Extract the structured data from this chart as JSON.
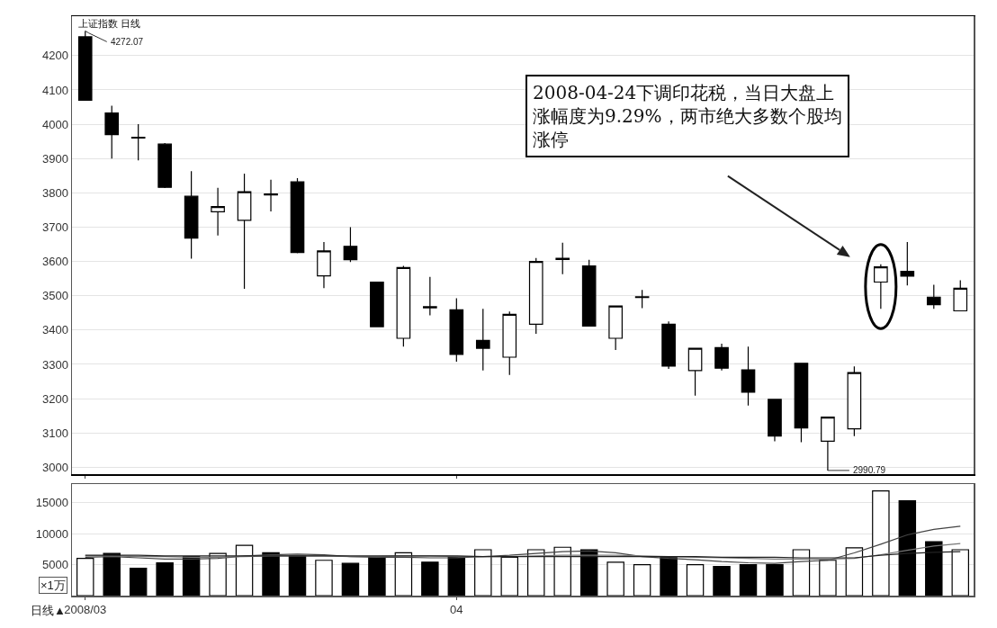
{
  "chart_data": [
    {
      "type": "candlestick",
      "categories": [
        "2008/03",
        null,
        null,
        null,
        null,
        null,
        null,
        null,
        null,
        null,
        null,
        null,
        null,
        null,
        "04",
        null,
        null,
        null,
        null,
        null,
        null,
        null,
        null,
        null,
        null,
        null,
        null,
        null,
        null,
        null,
        null,
        null,
        null,
        null
      ],
      "ohlc": [
        [
          4255,
          4272,
          4070,
          4070
        ],
        [
          4033,
          4054,
          3900,
          3970
        ],
        [
          3960,
          4000,
          3895,
          3962
        ],
        [
          3942,
          3945,
          3814,
          3816
        ],
        [
          3790,
          3863,
          3608,
          3668
        ],
        [
          3745,
          3815,
          3676,
          3760
        ],
        [
          3720,
          3856,
          3520,
          3803
        ],
        [
          3794,
          3838,
          3746,
          3797
        ],
        [
          3832,
          3843,
          3624,
          3626
        ],
        [
          3558,
          3657,
          3522,
          3631
        ],
        [
          3644,
          3700,
          3598,
          3605
        ],
        [
          3540,
          3540,
          3410,
          3410
        ],
        [
          3376,
          3587,
          3352,
          3582
        ],
        [
          3465,
          3555,
          3443,
          3468
        ],
        [
          3459,
          3493,
          3308,
          3329
        ],
        [
          3370,
          3462,
          3282,
          3347
        ],
        [
          3321,
          3454,
          3269,
          3446
        ],
        [
          3417,
          3610,
          3389,
          3600
        ],
        [
          3606,
          3655,
          3563,
          3609
        ],
        [
          3587,
          3605,
          3412,
          3412
        ],
        [
          3376,
          3472,
          3342,
          3470
        ],
        [
          3495,
          3517,
          3464,
          3497
        ],
        [
          3417,
          3425,
          3287,
          3295
        ],
        [
          3282,
          3347,
          3209,
          3347
        ],
        [
          3349,
          3360,
          3282,
          3289
        ],
        [
          3284,
          3352,
          3180,
          3219
        ],
        [
          3198,
          3198,
          3076,
          3091
        ],
        [
          3303,
          3303,
          3073,
          3115
        ],
        [
          3076,
          3146,
          2990.79,
          3146
        ],
        [
          3112,
          3294,
          3091,
          3276
        ],
        [
          3540,
          3592,
          3462,
          3584
        ],
        [
          3571,
          3657,
          3530,
          3557
        ],
        [
          3496,
          3532,
          3462,
          3474
        ],
        [
          3456,
          3545,
          3456,
          3522
        ]
      ],
      "colors": [
        "#000000",
        "#000000",
        "#000000",
        "#000000",
        "#000000",
        "#ffffff",
        "#ffffff",
        "#000000",
        "#000000",
        "#ffffff",
        "#000000",
        "#000000",
        "#ffffff",
        "#000000",
        "#000000",
        "#000000",
        "#ffffff",
        "#ffffff",
        "#000000",
        "#000000",
        "#ffffff",
        "#000000",
        "#000000",
        "#ffffff",
        "#000000",
        "#000000",
        "#000000",
        "#000000",
        "#ffffff",
        "#ffffff",
        "#ffffff",
        "#000000",
        "#000000",
        "#ffffff"
      ],
      "ylim": [
        2980,
        4315
      ],
      "yticks": [
        3000,
        3100,
        3200,
        3300,
        3400,
        3500,
        3600,
        3700,
        3800,
        3900,
        4000,
        4100,
        4200
      ],
      "grid": "y",
      "tick_labels": "y",
      "annotations": [
        "上证指数 日线",
        "4272.07",
        "2990.79",
        "2008-04-24下调印花税，当日大盘上涨幅度为9.29%，两市绝大多数个股均涨停"
      ]
    },
    {
      "type": "bar",
      "categories": [
        "2008/03",
        null,
        null,
        null,
        null,
        null,
        null,
        null,
        null,
        null,
        null,
        null,
        null,
        null,
        "04",
        null,
        null,
        null,
        null,
        null,
        null,
        null,
        null,
        null,
        null,
        null,
        null,
        null,
        null,
        null,
        null,
        null,
        null,
        null
      ],
      "series": [
        {
          "values": [
            6000,
            6800,
            4400,
            5300,
            6300,
            6800,
            8100,
            6900,
            6400,
            5700,
            5200,
            6200,
            6900,
            5400,
            6200,
            7400,
            6200,
            7400,
            7800,
            7400,
            5400,
            5000,
            6200,
            5000,
            4700,
            5000,
            5000,
            7400,
            5700,
            7700,
            16900,
            15300,
            8700,
            7400
          ],
          "colors": [
            "#ffffff",
            "#000000",
            "#000000",
            "#000000",
            "#000000",
            "#ffffff",
            "#ffffff",
            "#000000",
            "#000000",
            "#ffffff",
            "#000000",
            "#000000",
            "#ffffff",
            "#000000",
            "#000000",
            "#ffffff",
            "#ffffff",
            "#ffffff",
            "#ffffff",
            "#000000",
            "#ffffff",
            "#ffffff",
            "#000000",
            "#ffffff",
            "#000000",
            "#000000",
            "#000000",
            "#ffffff",
            "#ffffff",
            "#ffffff",
            "#ffffff",
            "#000000",
            "#000000",
            "#ffffff"
          ]
        },
        {
          "type": "line",
          "color": "#444444",
          "values": [
            6200,
            6300,
            6100,
            5900,
            5900,
            6000,
            6400,
            6600,
            6700,
            6600,
            6300,
            6200,
            6200,
            6100,
            6100,
            6300,
            6500,
            6800,
            7100,
            7200,
            6900,
            6300,
            6000,
            5800,
            5500,
            5300,
            5200,
            5500,
            5700,
            6900,
            8300,
            9800,
            10700,
            11200
          ]
        },
        {
          "type": "line",
          "color": "#777777",
          "values": [
            6400,
            6400,
            6300,
            6300,
            6200,
            6200,
            6300,
            6400,
            6400,
            6400,
            6300,
            6300,
            6400,
            6400,
            6300,
            6300,
            6300,
            6400,
            6500,
            6500,
            6500,
            6400,
            6300,
            6200,
            6100,
            6000,
            5900,
            5900,
            5900,
            6000,
            6600,
            7300,
            8000,
            8400
          ]
        },
        {
          "type": "line",
          "color": "#222222",
          "values": [
            6500,
            6500,
            6500,
            6400,
            6400,
            6400,
            6400,
            6400,
            6400,
            6400,
            6400,
            6400,
            6400,
            6400,
            6400,
            6300,
            6300,
            6300,
            6300,
            6300,
            6300,
            6300,
            6300,
            6300,
            6200,
            6200,
            6200,
            6100,
            6100,
            6100,
            6500,
            6800,
            7000,
            7100
          ]
        }
      ],
      "ylim": [
        0,
        18000
      ],
      "yticks": [
        5000,
        10000,
        15000
      ],
      "grid": "y",
      "annotations": [
        "×1万",
        "日线▲"
      ]
    }
  ]
}
